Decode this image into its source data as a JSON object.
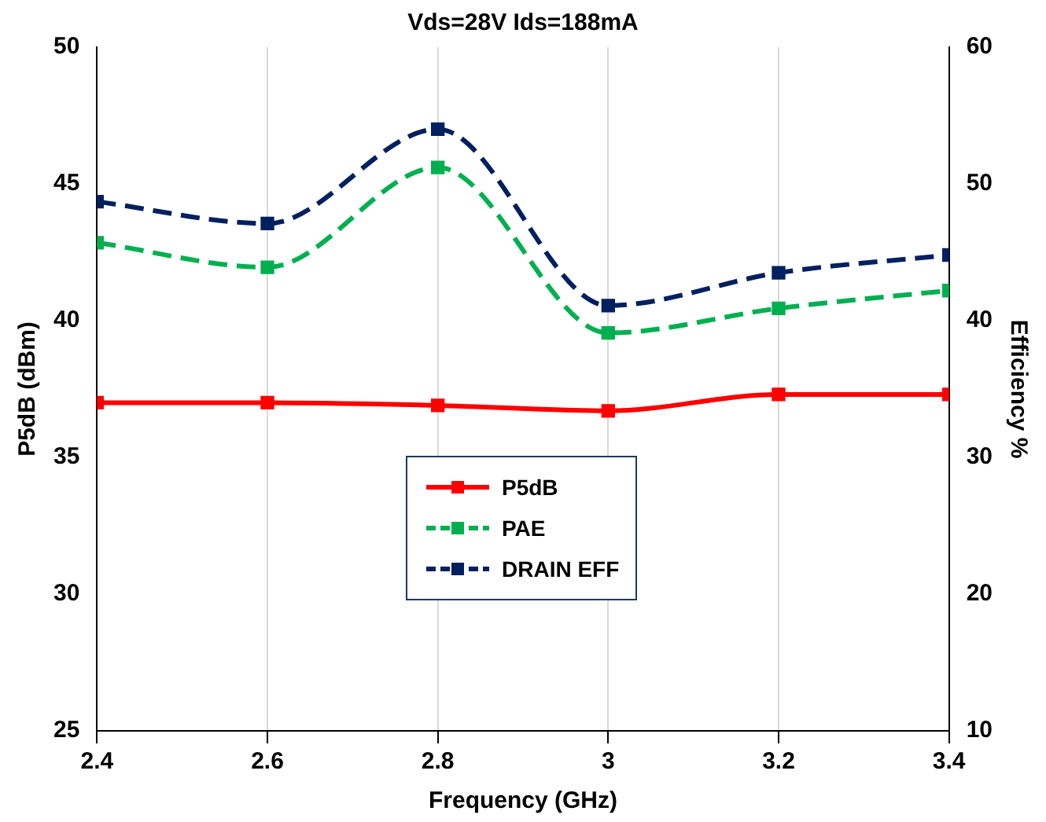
{
  "chart_data": {
    "type": "line",
    "title": "Vds=28V Ids=188mA",
    "xlabel": "Frequency (GHz)",
    "ylabel": "P5dB (dBm)",
    "y2label": "Efficiency %",
    "x": [
      2.4,
      2.6,
      2.8,
      3.0,
      3.2,
      3.4
    ],
    "xlim": [
      2.4,
      3.4
    ],
    "xticks": [
      2.4,
      2.6,
      2.8,
      {
        "value": 3.0,
        "label": "3"
      },
      3.2,
      3.4
    ],
    "ylim": [
      25,
      50
    ],
    "yticks": [
      25,
      30,
      35,
      40,
      45,
      50
    ],
    "y2lim": [
      10,
      60
    ],
    "y2ticks": [
      10,
      20,
      30,
      40,
      50,
      60
    ],
    "grid": "x",
    "legend": "center",
    "marker": "square",
    "series": [
      {
        "name": "P5dB",
        "color": "#ff0000",
        "values": [
          37.0,
          37.0,
          36.9,
          36.7,
          37.3,
          37.3
        ],
        "line_style": "solid"
      },
      {
        "name": "PAE",
        "color": "#00b050",
        "values": [
          45.7,
          43.9,
          51.2,
          39.1,
          40.9,
          42.2
        ],
        "axis": "y2",
        "line_style": "dashed"
      },
      {
        "name": "DRAIN EFF",
        "color": "#002060",
        "values": [
          48.7,
          47.1,
          54.0,
          41.1,
          43.5,
          44.8
        ],
        "axis": "y2",
        "line_style": "dashed"
      }
    ]
  }
}
